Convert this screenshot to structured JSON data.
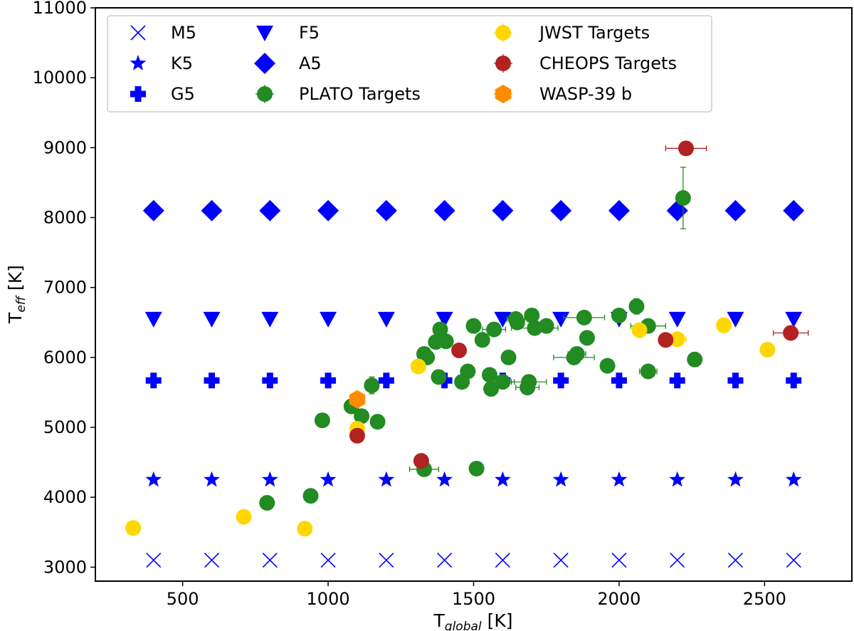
{
  "chart_data": {
    "type": "scatter",
    "xlabel": {
      "main": "T",
      "sub": "global",
      "unit": " [K]"
    },
    "ylabel": {
      "main": "T",
      "sub": "eff",
      "unit": " [K]"
    },
    "xlim": [
      200,
      2800
    ],
    "ylim": [
      2800,
      11000
    ],
    "xticks": [
      500,
      1000,
      1500,
      2000,
      2500
    ],
    "yticks": [
      3000,
      4000,
      5000,
      6000,
      7000,
      8000,
      9000,
      10000,
      11000
    ],
    "legend_position": "top-left",
    "colors": {
      "blue": "#0000ff",
      "green": "#228b22",
      "yellow": "#ffd700",
      "red": "#b22222",
      "orange": "#ff8c00"
    },
    "series": [
      {
        "name": "M5",
        "marker": "x",
        "color": "#0000ff",
        "x": [
          400,
          600,
          800,
          1000,
          1200,
          1400,
          1600,
          1800,
          2000,
          2200,
          2400,
          2600
        ],
        "y": [
          3100,
          3100,
          3100,
          3100,
          3100,
          3100,
          3100,
          3100,
          3100,
          3100,
          3100,
          3100
        ]
      },
      {
        "name": "K5",
        "marker": "star",
        "color": "#0000ff",
        "x": [
          400,
          600,
          800,
          1000,
          1200,
          1400,
          1600,
          1800,
          2000,
          2200,
          2400,
          2600
        ],
        "y": [
          4250,
          4250,
          4250,
          4250,
          4250,
          4250,
          4250,
          4250,
          4250,
          4250,
          4250,
          4250
        ]
      },
      {
        "name": "G5",
        "marker": "plus",
        "color": "#0000ff",
        "x": [
          400,
          600,
          800,
          1000,
          1200,
          1400,
          1600,
          1800,
          2000,
          2200,
          2400,
          2600
        ],
        "y": [
          5670,
          5670,
          5670,
          5670,
          5670,
          5670,
          5670,
          5670,
          5670,
          5670,
          5670,
          5670
        ]
      },
      {
        "name": "F5",
        "marker": "triangle-down",
        "color": "#0000ff",
        "x": [
          400,
          600,
          800,
          1000,
          1200,
          1400,
          1600,
          1800,
          2000,
          2200,
          2400,
          2600
        ],
        "y": [
          6550,
          6550,
          6550,
          6550,
          6550,
          6550,
          6550,
          6550,
          6550,
          6550,
          6550,
          6550
        ]
      },
      {
        "name": "A5",
        "marker": "diamond",
        "color": "#0000ff",
        "x": [
          400,
          600,
          800,
          1000,
          1200,
          1400,
          1600,
          1800,
          2000,
          2200,
          2400,
          2600
        ],
        "y": [
          8100,
          8100,
          8100,
          8100,
          8100,
          8100,
          8100,
          8100,
          8100,
          8100,
          8100,
          8100
        ]
      },
      {
        "name": "PLATO Targets",
        "marker": "circle",
        "color": "#228b22",
        "points": [
          {
            "x": 790,
            "y": 3920
          },
          {
            "x": 940,
            "y": 4020
          },
          {
            "x": 980,
            "y": 5100
          },
          {
            "x": 1080,
            "y": 5300
          },
          {
            "x": 1115,
            "y": 5160
          },
          {
            "x": 1150,
            "y": 5600,
            "yerr": 120
          },
          {
            "x": 1170,
            "y": 5080
          },
          {
            "x": 1330,
            "y": 4400,
            "xerr": 50
          },
          {
            "x": 1330,
            "y": 6050
          },
          {
            "x": 1340,
            "y": 6000
          },
          {
            "x": 1370,
            "y": 6220
          },
          {
            "x": 1380,
            "y": 5720
          },
          {
            "x": 1385,
            "y": 6400
          },
          {
            "x": 1405,
            "y": 6230
          },
          {
            "x": 1460,
            "y": 5650
          },
          {
            "x": 1480,
            "y": 5800
          },
          {
            "x": 1500,
            "y": 6450
          },
          {
            "x": 1510,
            "y": 4410
          },
          {
            "x": 1530,
            "y": 6250,
            "yerr": 90
          },
          {
            "x": 1555,
            "y": 5750
          },
          {
            "x": 1560,
            "y": 5550
          },
          {
            "x": 1570,
            "y": 6400,
            "xerr": 40
          },
          {
            "x": 1600,
            "y": 5650,
            "xerr": 40
          },
          {
            "x": 1620,
            "y": 6000
          },
          {
            "x": 1645,
            "y": 6550,
            "xerr": 30
          },
          {
            "x": 1650,
            "y": 6500
          },
          {
            "x": 1685,
            "y": 5570,
            "xerr": 40
          },
          {
            "x": 1690,
            "y": 5650,
            "xerr": 60
          },
          {
            "x": 1700,
            "y": 6600,
            "yerr": 90
          },
          {
            "x": 1710,
            "y": 6420,
            "xerr": 80
          },
          {
            "x": 1750,
            "y": 6450,
            "yerr": 90
          },
          {
            "x": 1845,
            "y": 6000,
            "xerr": 70
          },
          {
            "x": 1855,
            "y": 6050,
            "xerr": 30
          },
          {
            "x": 1880,
            "y": 6570,
            "xerr": 70,
            "yerr": 90
          },
          {
            "x": 1890,
            "y": 6280
          },
          {
            "x": 1960,
            "y": 5880,
            "yerr": 90
          },
          {
            "x": 2000,
            "y": 6600
          },
          {
            "x": 2060,
            "y": 6730,
            "yerr": 110
          },
          {
            "x": 2100,
            "y": 5800,
            "xerr": 30
          },
          {
            "x": 2100,
            "y": 6450,
            "xerr": 60
          },
          {
            "x": 2220,
            "y": 8280,
            "yerr": 440
          },
          {
            "x": 2260,
            "y": 5970,
            "yerr": 100
          }
        ]
      },
      {
        "name": "JWST Targets",
        "marker": "circle",
        "color": "#ffd700",
        "points": [
          {
            "x": 330,
            "y": 3560
          },
          {
            "x": 710,
            "y": 3720
          },
          {
            "x": 920,
            "y": 3550
          },
          {
            "x": 1100,
            "y": 4980
          },
          {
            "x": 1310,
            "y": 5870
          },
          {
            "x": 2070,
            "y": 6390
          },
          {
            "x": 2200,
            "y": 6260,
            "xerr": 30
          },
          {
            "x": 2360,
            "y": 6460,
            "yerr": 100
          },
          {
            "x": 2510,
            "y": 6110
          }
        ]
      },
      {
        "name": "CHEOPS Targets",
        "marker": "circle",
        "color": "#b22222",
        "points": [
          {
            "x": 1100,
            "y": 4880
          },
          {
            "x": 1320,
            "y": 4520
          },
          {
            "x": 1450,
            "y": 6100
          },
          {
            "x": 2160,
            "y": 6250
          },
          {
            "x": 2230,
            "y": 8990,
            "xerr": 70
          },
          {
            "x": 2590,
            "y": 6350,
            "xerr": 60
          }
        ]
      },
      {
        "name": "WASP-39 b",
        "marker": "hexagon",
        "color": "#ff8c00",
        "points": [
          {
            "x": 1100,
            "y": 5400,
            "yerr": 80
          }
        ]
      }
    ],
    "legend_labels": [
      "M5",
      "K5",
      "G5",
      "F5",
      "A5",
      "PLATO Targets",
      "JWST Targets",
      "CHEOPS Targets",
      "WASP-39 b"
    ]
  }
}
